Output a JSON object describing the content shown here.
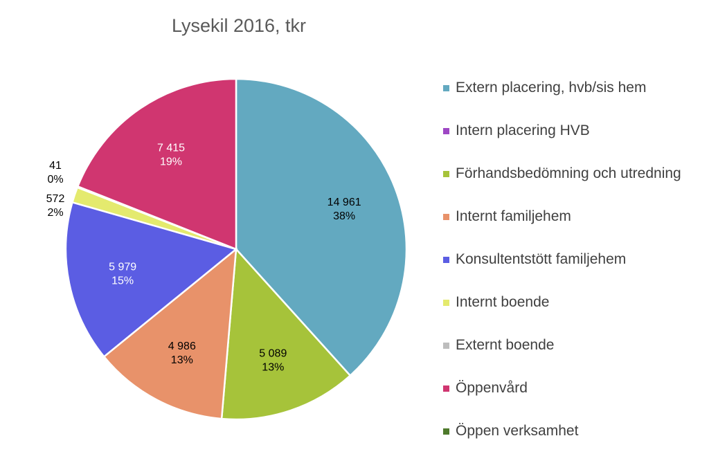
{
  "chart_data": {
    "type": "pie",
    "title": "Lysekil 2016, tkr",
    "legend_position": "right",
    "slices": [
      {
        "label": "Extern placering, hvb/sis hem",
        "value": 14961,
        "value_label": "14 961",
        "pct_label": "38%",
        "color": "#63a9c0",
        "label_color": "#000000"
      },
      {
        "label": "Intern placering HVB",
        "value": 0,
        "value_label": "",
        "pct_label": "",
        "color": "#9e47c4",
        "label_color": "#000000"
      },
      {
        "label": "Förhandsbedömning och utredning",
        "value": 5089,
        "value_label": "5 089",
        "pct_label": "13%",
        "color": "#a6c33a",
        "label_color": "#000000"
      },
      {
        "label": "Internt familjehem",
        "value": 4986,
        "value_label": "4 986",
        "pct_label": "13%",
        "color": "#e8926a",
        "label_color": "#000000"
      },
      {
        "label": "Konsultentstött familjehem",
        "value": 5979,
        "value_label": "5 979",
        "pct_label": "15%",
        "color": "#5b5de3",
        "label_color": "#ffffff"
      },
      {
        "label": "Internt boende",
        "value": 572,
        "value_label": "572",
        "pct_label": "2%",
        "color": "#e4ea6e",
        "label_color": "#000000"
      },
      {
        "label": "Externt boende",
        "value": 41,
        "value_label": "41",
        "pct_label": "0%",
        "color": "#bdbdbd",
        "label_color": "#000000"
      },
      {
        "label": "Öppenvård",
        "value": 7415,
        "value_label": "7 415",
        "pct_label": "19%",
        "color": "#d03670",
        "label_color": "#ffffff"
      },
      {
        "label": "Öppen verksamhet",
        "value": 0,
        "value_label": "",
        "pct_label": "",
        "color": "#4e7a2c",
        "label_color": "#000000"
      }
    ]
  }
}
